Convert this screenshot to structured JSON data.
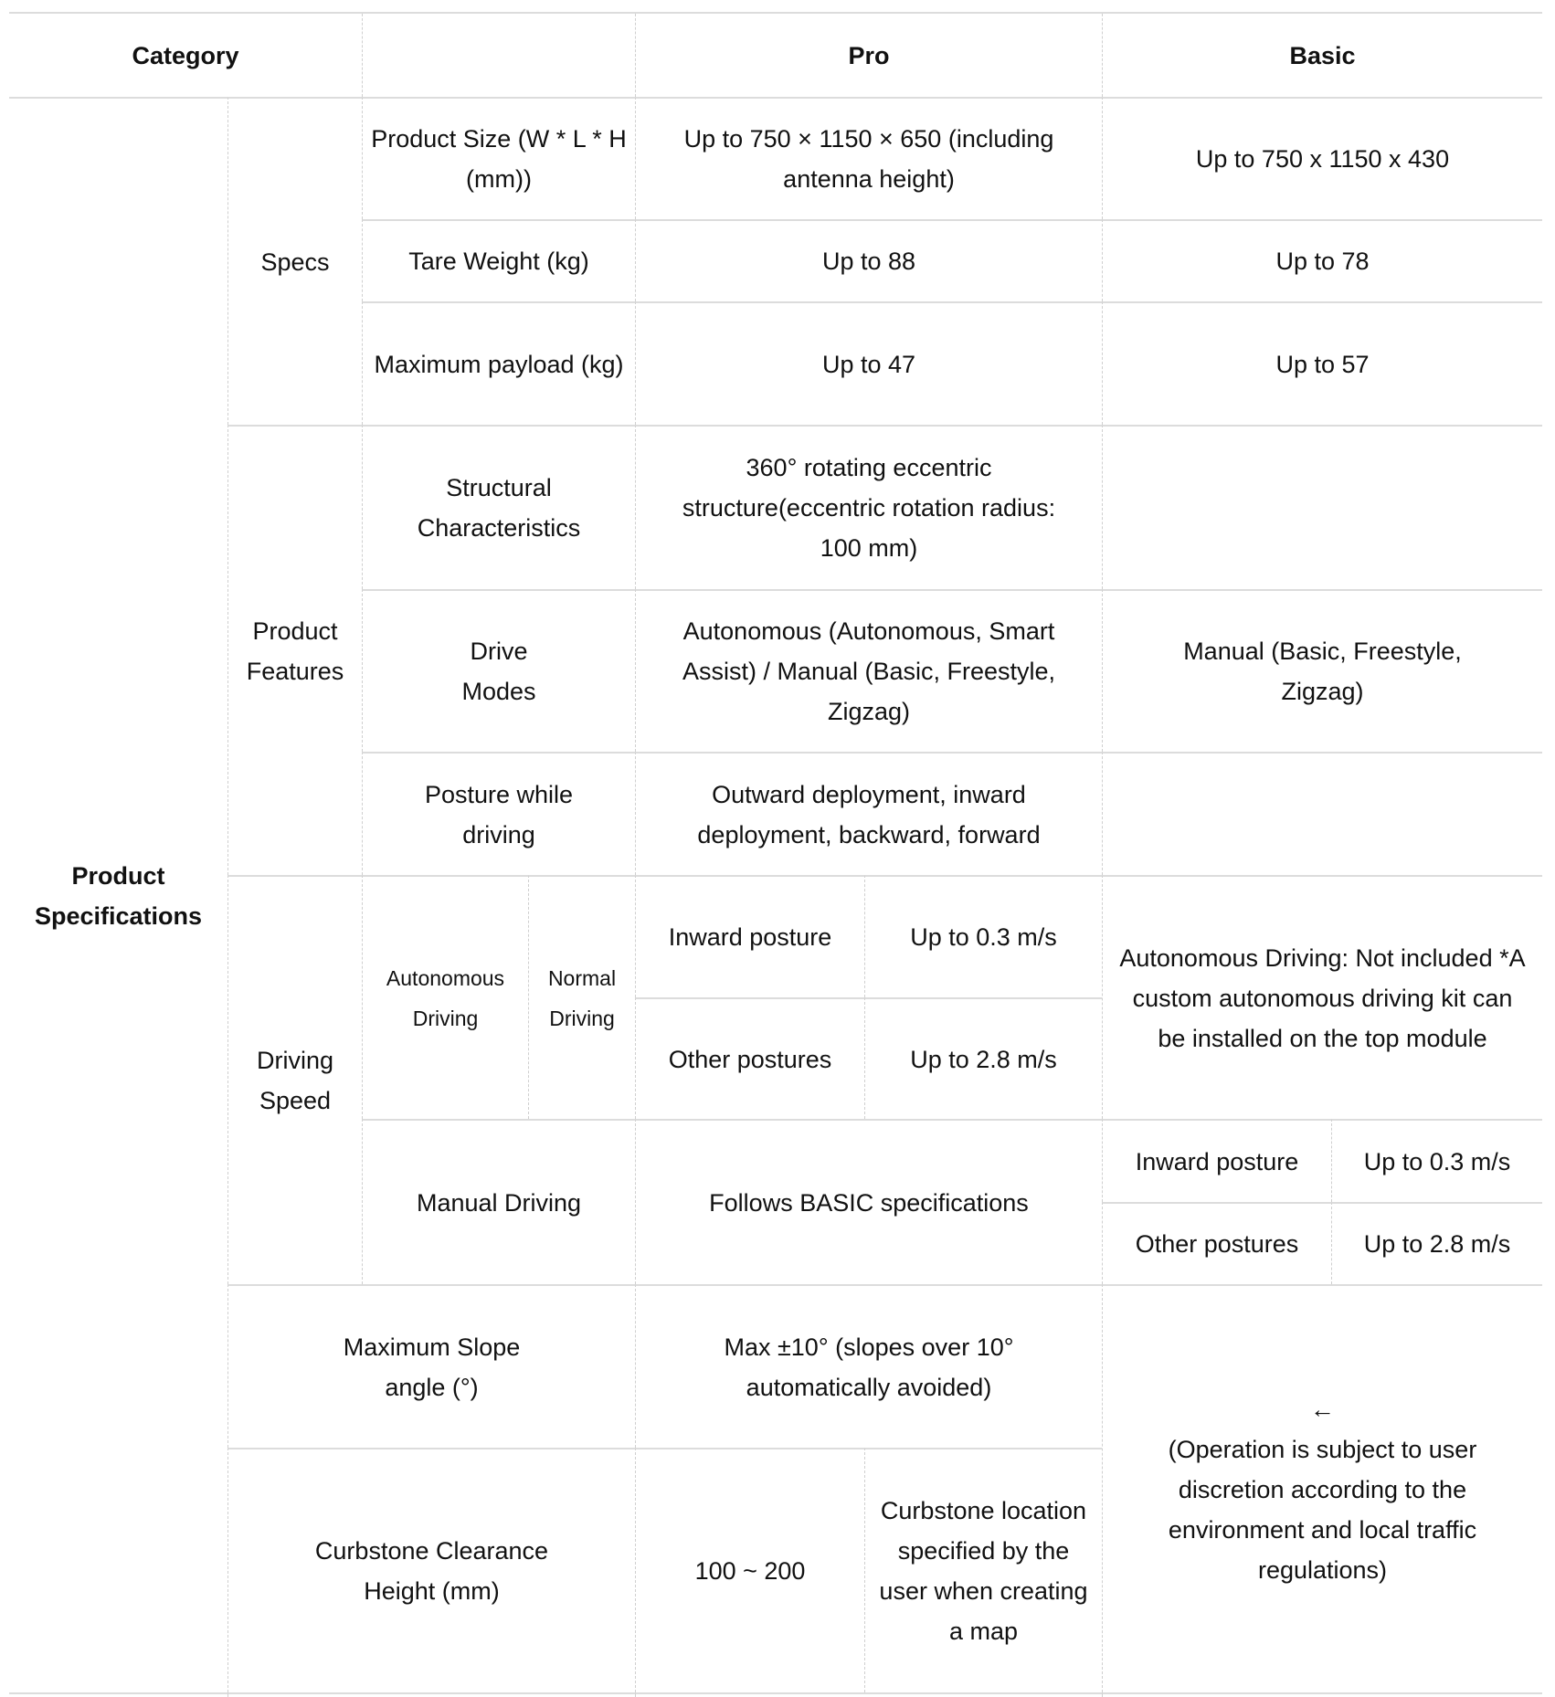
{
  "header": {
    "category": "Category",
    "blank": "",
    "pro": "Pro",
    "basic": "Basic"
  },
  "group": "Product Specifications",
  "specs": {
    "label": "Specs",
    "rows": [
      {
        "name": "Product Size (W * L * H (mm))",
        "pro": "Up to 750 × 1150 × 650 (including antenna height)",
        "basic": "Up to 750 x 1150 x 430"
      },
      {
        "name": "Tare Weight (kg)",
        "pro": "Up to 88",
        "basic": "Up to 78"
      },
      {
        "name": "Maximum payload (kg)",
        "pro": "Up to 47",
        "basic": "Up to 57"
      }
    ]
  },
  "features": {
    "label": "Product Features",
    "rows": [
      {
        "name": "Structural Characteristics",
        "pro": "360° rotating eccentric structure(eccentric rotation radius: 100 mm)",
        "basic": ""
      },
      {
        "name": "Drive Modes",
        "pro": "Autonomous (Autonomous, Smart Assist) / Manual (Basic, Freestyle, Zigzag)",
        "basic": "Manual (Basic, Freestyle, Zigzag)"
      },
      {
        "name": "Posture while driving",
        "pro": "Outward deployment, inward deployment, backward, forward",
        "basic": ""
      }
    ]
  },
  "speed": {
    "label": "Driving Speed",
    "autonomous": "Autonomous Driving",
    "normal": "Normal Driving",
    "pro_rows": [
      {
        "posture": "Inward posture",
        "value": "Up to 0.3 m/s"
      },
      {
        "posture": "Other postures",
        "value": "Up to 2.8 m/s"
      }
    ],
    "basic_note": "Autonomous Driving: Not included *A custom autonomous driving kit can be installed on the top module",
    "manual": "Manual Driving",
    "manual_pro": "Follows BASIC specifications",
    "basic_rows": [
      {
        "posture": "Inward posture",
        "value": "Up to 0.3 m/s"
      },
      {
        "posture": "Other postures",
        "value": "Up to 2.8 m/s"
      }
    ]
  },
  "slope": {
    "name": "Maximum Slope angle (°)",
    "pro": "Max ±10° (slopes over 10° automatically avoided)"
  },
  "curb": {
    "name": "Curbstone Clearance Height (mm)",
    "pro_value": "100 ~ 200",
    "pro_note": "Curbstone location specified by the user when creating a map"
  },
  "basic_shared": {
    "arrow": "←",
    "note": "(Operation is subject to user discretion according to the environment and local traffic regulations)"
  }
}
